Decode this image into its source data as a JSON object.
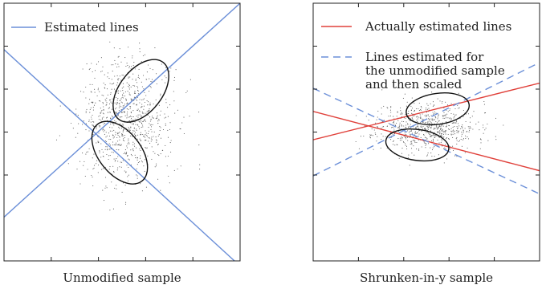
{
  "chart_data": [
    {
      "type": "scatter",
      "title": "",
      "caption": "Unmodified sample",
      "xlabel": "",
      "ylabel": "",
      "grid": false,
      "legend": {
        "placement": "top-left",
        "entries": [
          {
            "label": "Estimated lines",
            "color": "#6b8fd8",
            "style": "solid"
          }
        ]
      },
      "lines": [
        {
          "name": "Estimated lines",
          "color": "#6b8fd8",
          "style": "solid",
          "x": [
            0,
            1
          ],
          "y": [
            0.17,
            1.0
          ]
        },
        {
          "name": "Estimated lines",
          "color": "#6b8fd8",
          "style": "solid",
          "x": [
            0,
            1
          ],
          "y": [
            0.82,
            -0.02
          ]
        }
      ],
      "ellipses": [
        {
          "cx": 0.58,
          "cy": 0.66,
          "rx": 0.09,
          "ry": 0.14,
          "angle": 38
        },
        {
          "cx": 0.49,
          "cy": 0.42,
          "rx": 0.09,
          "ry": 0.14,
          "angle": -38
        }
      ],
      "scatter": {
        "cx": 0.52,
        "cy": 0.54,
        "spread_x": 0.18,
        "spread_y": 0.22,
        "count": 900,
        "seed": 7
      },
      "xlim": [
        0,
        1
      ],
      "ylim": [
        0,
        1
      ]
    },
    {
      "type": "scatter",
      "title": "",
      "caption": "Shrunken-in-y sample",
      "xlabel": "",
      "ylabel": "",
      "grid": false,
      "legend": {
        "placement": "top-left",
        "entries": [
          {
            "label": "Actually estimated lines",
            "color": "#e0403a",
            "style": "solid"
          },
          {
            "label": "Lines estimated for",
            "label2": "the unmodified sample",
            "label3": "and then scaled",
            "color": "#6b8fd8",
            "style": "dashed"
          }
        ]
      },
      "lines": [
        {
          "name": "Actually estimated lines",
          "color": "#e0403a",
          "style": "solid",
          "x": [
            0,
            1
          ],
          "y": [
            0.47,
            0.69
          ]
        },
        {
          "name": "Actually estimated lines",
          "color": "#e0403a",
          "style": "solid",
          "x": [
            0,
            1
          ],
          "y": [
            0.58,
            0.35
          ]
        },
        {
          "name": "Lines estimated for the unmodified sample and then scaled",
          "color": "#6b8fd8",
          "style": "dashed",
          "x": [
            0,
            1
          ],
          "y": [
            0.33,
            0.77
          ]
        },
        {
          "name": "Lines estimated for the unmodified sample and then scaled",
          "color": "#6b8fd8",
          "style": "dashed",
          "x": [
            0,
            1
          ],
          "y": [
            0.67,
            0.26
          ]
        }
      ],
      "ellipses": [
        {
          "cx": 0.55,
          "cy": 0.59,
          "rx": 0.14,
          "ry": 0.06,
          "angle": -8
        },
        {
          "cx": 0.46,
          "cy": 0.45,
          "rx": 0.14,
          "ry": 0.06,
          "angle": 8
        }
      ],
      "scatter": {
        "cx": 0.5,
        "cy": 0.52,
        "spread_x": 0.2,
        "spread_y": 0.09,
        "count": 700,
        "seed": 11
      },
      "xlim": [
        0,
        1
      ],
      "ylim": [
        0,
        1
      ]
    }
  ]
}
